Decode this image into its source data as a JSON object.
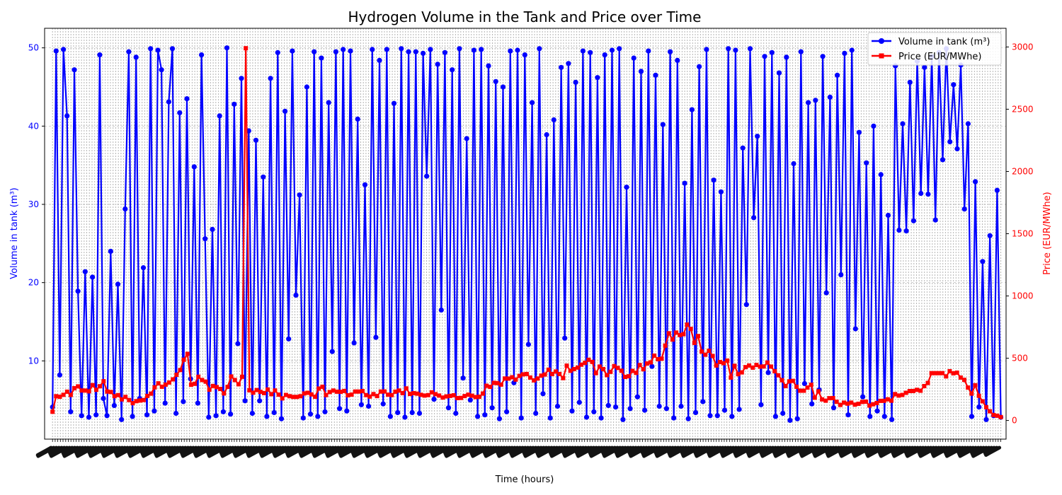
{
  "chart_data": {
    "type": "line",
    "title": "Hydrogen Volume in the Tank and Price over Time",
    "xlabel": "Time (hours)",
    "xlim": [
      0,
      8760
    ],
    "x_step": 24,
    "x_ticks_unreadable": true,
    "grid": true,
    "legend_position": "top-right",
    "axes": {
      "left": {
        "label": "Volume in tank (m³)",
        "ylim": [
          0,
          52.5
        ],
        "ticks": [
          10,
          20,
          30,
          40,
          50
        ],
        "color": "#0000ff"
      },
      "right": {
        "label": "Price (EUR/MWhe)",
        "ylim": [
          -150,
          3150
        ],
        "ticks": [
          0,
          500,
          1000,
          1500,
          2000,
          2500,
          3000
        ],
        "color": "#ff0000"
      }
    },
    "series": [
      {
        "name": "Volume in tank (m³)",
        "axis": "left",
        "color": "#0000ff",
        "marker": "circle",
        "values": [
          4.1,
          49.6,
          8.2,
          49.8,
          41.3,
          3.5,
          47.2,
          18.9,
          3.0,
          21.4,
          2.8,
          20.7,
          3.1,
          49.1,
          5.2,
          3.0,
          24.0,
          4.3,
          19.8,
          2.5,
          29.4,
          49.5,
          2.9,
          48.8,
          5.2,
          21.9,
          3.1,
          49.9,
          3.6,
          49.7,
          47.2,
          4.6,
          43.1,
          49.9,
          3.3,
          41.7,
          4.8,
          43.5,
          7.7,
          34.8,
          4.6,
          49.1,
          25.6,
          2.8,
          26.8,
          3.0,
          41.3,
          3.5,
          50.0,
          3.2,
          42.8,
          12.2,
          46.1,
          4.9,
          39.4,
          3.3,
          38.2,
          4.9,
          33.5,
          2.9,
          46.1,
          3.4,
          49.4,
          2.6,
          41.9,
          12.8,
          49.6,
          18.4,
          31.2,
          2.7,
          45.0,
          3.2,
          49.5,
          2.9,
          48.7,
          3.5,
          43.0,
          11.2,
          49.5,
          3.9,
          49.8,
          3.6,
          49.6,
          12.3,
          40.9,
          4.4,
          32.5,
          4.2,
          49.8,
          13.0,
          48.4,
          4.5,
          49.8,
          2.9,
          42.9,
          3.4,
          49.9,
          2.8,
          49.5,
          3.4,
          49.5,
          3.3,
          49.3,
          33.6,
          49.8,
          5.1,
          47.9,
          16.5,
          49.4,
          4.0,
          47.2,
          3.3,
          49.9,
          7.8,
          38.4,
          5.0,
          49.7,
          2.9,
          49.8,
          3.1,
          47.7,
          4.0,
          45.7,
          2.6,
          45.0,
          3.5,
          49.6,
          7.2,
          49.7,
          2.7,
          49.1,
          12.1,
          43.0,
          3.3,
          49.9,
          5.8,
          38.9,
          2.7,
          40.8,
          4.2,
          47.5,
          12.9,
          48.0,
          3.6,
          45.6,
          4.7,
          49.6,
          2.8,
          49.4,
          3.5,
          46.2,
          2.7,
          49.1,
          4.3,
          49.7,
          4.1,
          49.9,
          2.5,
          32.2,
          3.9,
          48.7,
          5.4,
          47.0,
          3.7,
          49.6,
          9.3,
          46.5,
          4.2,
          40.2,
          3.9,
          49.5,
          2.7,
          48.4,
          4.2,
          32.7,
          2.6,
          42.1,
          3.4,
          47.6,
          4.8,
          49.8,
          3.0,
          33.1,
          3.0,
          31.6,
          3.7,
          49.9,
          2.9,
          49.7,
          3.8,
          37.2,
          17.2,
          49.9,
          28.3,
          38.7,
          4.4,
          48.9,
          8.5,
          49.4,
          2.9,
          46.8,
          3.3,
          48.8,
          2.4,
          35.2,
          2.6,
          49.5,
          7.1,
          43.0,
          4.5,
          43.3,
          6.3,
          48.9,
          18.7,
          43.7,
          4.0,
          46.5,
          21.0,
          49.3,
          3.1,
          49.7,
          14.1,
          39.2,
          5.4,
          35.3,
          2.9,
          40.0,
          3.6,
          33.8,
          2.9,
          28.6,
          2.5,
          47.7,
          26.7,
          40.3,
          26.6,
          45.6,
          27.9,
          48.3,
          31.4,
          47.5,
          31.3,
          48.9,
          28.0,
          49.4,
          35.7,
          49.9,
          38.0,
          45.3,
          37.1,
          47.8,
          29.4,
          40.3,
          2.9,
          32.9,
          4.1,
          22.7,
          2.5,
          26.0,
          3.0,
          31.8,
          2.8
        ]
      },
      {
        "name": "Price (EUR/MWhe)",
        "axis": "right",
        "color": "#ff0000",
        "marker": "square",
        "values": [
          70,
          195,
          190,
          206,
          231,
          205,
          259,
          274,
          241,
          240,
          234,
          284,
          246,
          275,
          315,
          232,
          229,
          195,
          204,
          169,
          189,
          164,
          139,
          155,
          160,
          164,
          197,
          215,
          266,
          298,
          271,
          288,
          305,
          330,
          367,
          405,
          488,
          535,
          287,
          294,
          351,
          325,
          312,
          247,
          277,
          268,
          253,
          217,
          270,
          353,
          325,
          291,
          351,
          2990,
          242,
          223,
          244,
          230,
          220,
          249,
          211,
          241,
          208,
          177,
          205,
          195,
          189,
          189,
          195,
          217,
          222,
          209,
          191,
          256,
          271,
          204,
          228,
          240,
          231,
          230,
          237,
          202,
          208,
          232,
          232,
          236,
          204,
          192,
          212,
          196,
          232,
          233,
          207,
          204,
          231,
          240,
          219,
          257,
          213,
          219,
          215,
          206,
          200,
          204,
          226,
          211,
          200,
          184,
          193,
          197,
          202,
          180,
          181,
          196,
          207,
          199,
          188,
          190,
          216,
          279,
          270,
          302,
          300,
          288,
          337,
          336,
          347,
          328,
          358,
          370,
          373,
          345,
          322,
          337,
          360,
          369,
          408,
          373,
          393,
          373,
          340,
          440,
          399,
          413,
          425,
          448,
          463,
          487,
          470,
          380,
          433,
          413,
          364,
          391,
          437,
          422,
          399,
          350,
          355,
          398,
          382,
          445,
          411,
          458,
          466,
          521,
          492,
          496,
          601,
          700,
          650,
          706,
          686,
          693,
          770,
          736,
          623,
          678,
          553,
          528,
          560,
          518,
          441,
          469,
          460,
          481,
          345,
          439,
          372,
          386,
          428,
          441,
          424,
          446,
          432,
          434,
          465,
          433,
          395,
          363,
          323,
          276,
          314,
          318,
          271,
          239,
          239,
          264,
          287,
          183,
          234,
          169,
          159,
          179,
          180,
          150,
          125,
          143,
          135,
          143,
          127,
          134,
          149,
          151,
          120,
          130,
          140,
          157,
          158,
          170,
          159,
          212,
          200,
          205,
          222,
          236,
          237,
          246,
          239,
          276,
          301,
          380,
          380,
          380,
          380,
          354,
          396,
          379,
          384,
          345,
          326,
          264,
          216,
          283,
          198,
          154,
          106,
          74,
          44,
          38,
          27
        ]
      }
    ]
  },
  "legend": [
    {
      "label": "Volume in tank (m³)",
      "color": "#0000ff",
      "marker": "circle"
    },
    {
      "label": "Price (EUR/MWhe)",
      "color": "#ff0000",
      "marker": "square"
    }
  ]
}
